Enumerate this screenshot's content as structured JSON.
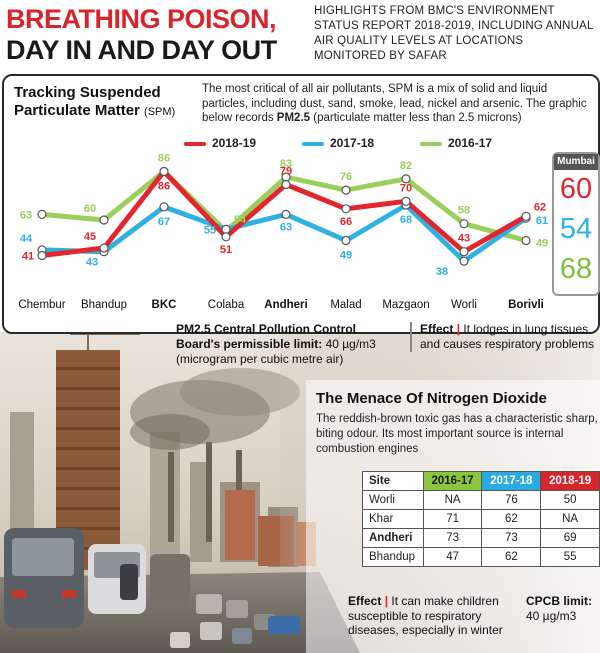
{
  "header": {
    "headline_line1": "BREATHING POISON,",
    "headline_line2": "DAY IN AND DAY OUT",
    "highlights": "HIGHLIGHTS FROM BMC'S ENVIRONMENT STATUS REPORT 2018-2019, INCLUDING ANNUAL AIR QUALITY LEVELS AT LOCATIONS MONITORED BY SAFAR"
  },
  "spm": {
    "title_line1": "Tracking Suspended",
    "title_line2": "Particulate Matter",
    "title_abbr": "(SPM)",
    "desc_part1": "The most critical of all air pollutants, SPM is a mix of solid and liquid particles, including dust, sand, smoke, lead, nickel and arsenic. The graphic below records ",
    "desc_bold": "PM2.5",
    "desc_part2": " (particulate matter less than 2.5 microns)"
  },
  "chart_data": {
    "type": "line",
    "categories": [
      "Chembur",
      "Bhandup",
      "BKC",
      "Colaba",
      "Andheri",
      "Malad",
      "Mazgaon",
      "Worli",
      "Borivli"
    ],
    "bold_categories": [
      "BKC",
      "Andheri",
      "Borivli"
    ],
    "ylim": [
      30,
      90
    ],
    "series": [
      {
        "name": "2018-19",
        "color": "#e3262d",
        "values": [
          41,
          45,
          86,
          51,
          79,
          66,
          70,
          43,
          62
        ]
      },
      {
        "name": "2017-18",
        "color": "#2fb1e3",
        "values": [
          44,
          43,
          67,
          55,
          63,
          49,
          68,
          38,
          61
        ]
      },
      {
        "name": "2016-17",
        "color": "#9bcf5c",
        "values": [
          63,
          60,
          86,
          54,
          83,
          76,
          82,
          58,
          49
        ]
      }
    ],
    "summary": {
      "label": "Mumbai",
      "values": [
        {
          "series": "2018-19",
          "value": "60",
          "color": "#e3262d"
        },
        {
          "series": "2017-18",
          "value": "54",
          "color": "#2fb1e3"
        },
        {
          "series": "2016-17",
          "value": "68",
          "color": "#7fbf3f"
        }
      ]
    }
  },
  "pm_limit": {
    "bold": "PM2.5 Central Pollution Control Board's permissible limit:",
    "rest": " 40 µg/m3 (microgram per cubic metre air)"
  },
  "effect1": {
    "label": "Effect",
    "bar": "|",
    "text": " It lodges in lung tissues and causes respiratory problems"
  },
  "no2": {
    "title": "The Menace Of Nitrogen Dioxide",
    "desc": "The reddish-brown toxic gas has a characteristic sharp, biting odour. Its most important source is internal combustion engines",
    "headers": [
      "Site",
      "2016-17",
      "2017-18",
      "2018-19"
    ],
    "rows": [
      {
        "site": "Worli",
        "v1": "NA",
        "v2": "76",
        "v3": "50"
      },
      {
        "site": "Khar",
        "v1": "71",
        "v2": "62",
        "v3": "NA"
      },
      {
        "site": "Andheri",
        "v1": "73",
        "v2": "73",
        "v3": "69"
      },
      {
        "site": "Bhandup",
        "v1": "47",
        "v2": "62",
        "v3": "55"
      }
    ]
  },
  "effect2": {
    "label": "Effect",
    "bar": "|",
    "text": " It can make children susceptible to respiratory diseases, especially in winter"
  },
  "cpcb": {
    "label": "CPCB limit:",
    "value": " 40 µg/m3"
  }
}
